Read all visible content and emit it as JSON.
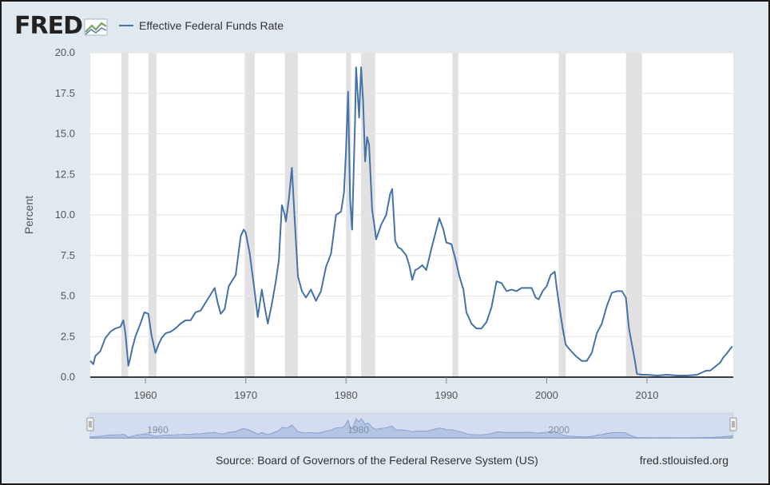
{
  "header": {
    "logo_text": "FRED",
    "logo_icon": "fred-trend-icon",
    "legend_label": "Effective Federal Funds Rate"
  },
  "footer": {
    "source": "Source: Board of Governors of the Federal Reserve System (US)",
    "site": "fred.stlouisfed.org"
  },
  "colors": {
    "line": "#4572a7",
    "recession": "#e1e1e1",
    "background": "#e1e9f0",
    "navigator_mask": "#b7c7e6",
    "navigator_area": "#6f8fc7"
  },
  "chart_data": {
    "type": "line",
    "title": "",
    "xlabel": "",
    "ylabel": "Percent",
    "xlim": [
      1954.5,
      2018.6
    ],
    "ylim": [
      0,
      20
    ],
    "x_ticks": [
      1960,
      1970,
      1980,
      1990,
      2000,
      2010
    ],
    "x_tick_labels": [
      "1960",
      "1970",
      "1980",
      "1990",
      "2000",
      "2010"
    ],
    "y_ticks": [
      0,
      2.5,
      5,
      7.5,
      10,
      12.5,
      15,
      17.5,
      20
    ],
    "y_tick_labels": [
      "0.0",
      "2.5",
      "5.0",
      "7.5",
      "10.0",
      "12.5",
      "15.0",
      "17.5",
      "20.0"
    ],
    "grid": true,
    "legend": "top-left",
    "recessions": [
      [
        1957.6,
        1958.3
      ],
      [
        1960.3,
        1961.1
      ],
      [
        1969.9,
        1970.9
      ],
      [
        1973.9,
        1975.2
      ],
      [
        1980.0,
        1980.5
      ],
      [
        1981.5,
        1982.9
      ],
      [
        1990.6,
        1991.2
      ],
      [
        2001.2,
        2001.9
      ],
      [
        2007.9,
        2009.5
      ]
    ],
    "series": [
      {
        "name": "Effective Federal Funds Rate",
        "x": [
          1954.5,
          1954.8,
          1955.0,
          1955.5,
          1956.0,
          1956.5,
          1957.0,
          1957.5,
          1957.8,
          1958.0,
          1958.3,
          1958.5,
          1958.7,
          1959.0,
          1959.5,
          1959.9,
          1960.3,
          1960.6,
          1961.0,
          1961.3,
          1961.6,
          1962.0,
          1962.5,
          1963.0,
          1963.5,
          1964.0,
          1964.5,
          1965.0,
          1965.5,
          1966.0,
          1966.5,
          1966.9,
          1967.2,
          1967.5,
          1967.9,
          1968.3,
          1968.7,
          1969.0,
          1969.5,
          1969.8,
          1970.0,
          1970.4,
          1970.9,
          1971.2,
          1971.6,
          1971.9,
          1972.2,
          1972.6,
          1973.0,
          1973.3,
          1973.6,
          1973.9,
          1974.0,
          1974.3,
          1974.6,
          1974.9,
          1975.2,
          1975.6,
          1976.0,
          1976.5,
          1977.0,
          1977.5,
          1978.0,
          1978.5,
          1979.0,
          1979.5,
          1979.8,
          1980.0,
          1980.2,
          1980.4,
          1980.6,
          1980.9,
          1981.0,
          1981.3,
          1981.5,
          1981.7,
          1981.9,
          1982.1,
          1982.3,
          1982.6,
          1982.9,
          1983.0,
          1983.5,
          1984.0,
          1984.4,
          1984.6,
          1984.9,
          1985.2,
          1985.5,
          1986.0,
          1986.3,
          1986.6,
          1986.9,
          1987.2,
          1987.6,
          1988.0,
          1988.5,
          1989.0,
          1989.3,
          1989.7,
          1990.0,
          1990.5,
          1990.9,
          1991.3,
          1991.7,
          1992.0,
          1992.5,
          1993.0,
          1993.5,
          1994.0,
          1994.5,
          1995.0,
          1995.5,
          1996.0,
          1996.5,
          1997.0,
          1997.5,
          1998.0,
          1998.5,
          1998.9,
          1999.2,
          1999.6,
          2000.0,
          2000.4,
          2000.8,
          2001.0,
          2001.3,
          2001.6,
          2001.9,
          2002.3,
          2002.9,
          2003.5,
          2004.0,
          2004.5,
          2005.0,
          2005.5,
          2006.0,
          2006.5,
          2007.0,
          2007.5,
          2007.9,
          2008.2,
          2008.5,
          2008.8,
          2009.0,
          2009.5,
          2010.0,
          2011.0,
          2012.0,
          2013.0,
          2014.0,
          2015.0,
          2015.9,
          2016.3,
          2016.9,
          2017.3,
          2017.6,
          2018.0,
          2018.5
        ],
        "values": [
          1.0,
          0.8,
          1.3,
          1.6,
          2.4,
          2.8,
          3.0,
          3.1,
          3.5,
          2.7,
          0.7,
          1.2,
          1.8,
          2.5,
          3.3,
          4.0,
          3.9,
          2.6,
          1.5,
          2.0,
          2.4,
          2.7,
          2.8,
          3.0,
          3.3,
          3.5,
          3.5,
          4.0,
          4.1,
          4.6,
          5.1,
          5.5,
          4.6,
          3.9,
          4.2,
          5.6,
          6.0,
          6.3,
          8.7,
          9.1,
          8.9,
          7.6,
          5.2,
          3.7,
          5.4,
          4.3,
          3.3,
          4.5,
          5.9,
          7.2,
          10.6,
          10.0,
          9.6,
          11.0,
          12.9,
          9.5,
          6.2,
          5.3,
          4.9,
          5.4,
          4.7,
          5.3,
          6.8,
          7.6,
          10.0,
          10.2,
          11.4,
          14.0,
          17.6,
          11.0,
          9.1,
          15.8,
          19.1,
          16.0,
          19.1,
          17.0,
          13.3,
          14.8,
          14.3,
          10.3,
          9.0,
          8.5,
          9.4,
          10.0,
          11.3,
          11.6,
          8.4,
          8.0,
          7.9,
          7.5,
          6.9,
          6.0,
          6.6,
          6.7,
          6.9,
          6.6,
          7.9,
          9.1,
          9.8,
          9.1,
          8.3,
          8.2,
          7.3,
          6.2,
          5.4,
          4.0,
          3.3,
          3.0,
          3.0,
          3.4,
          4.3,
          5.9,
          5.8,
          5.3,
          5.4,
          5.3,
          5.5,
          5.5,
          5.5,
          4.9,
          4.8,
          5.3,
          5.6,
          6.3,
          6.5,
          5.5,
          4.2,
          3.0,
          2.0,
          1.7,
          1.3,
          1.0,
          1.0,
          1.5,
          2.7,
          3.3,
          4.4,
          5.2,
          5.3,
          5.3,
          4.9,
          3.0,
          2.0,
          1.0,
          0.2,
          0.15,
          0.15,
          0.1,
          0.15,
          0.1,
          0.1,
          0.15,
          0.4,
          0.4,
          0.7,
          0.9,
          1.2,
          1.5,
          1.9
        ]
      }
    ]
  }
}
